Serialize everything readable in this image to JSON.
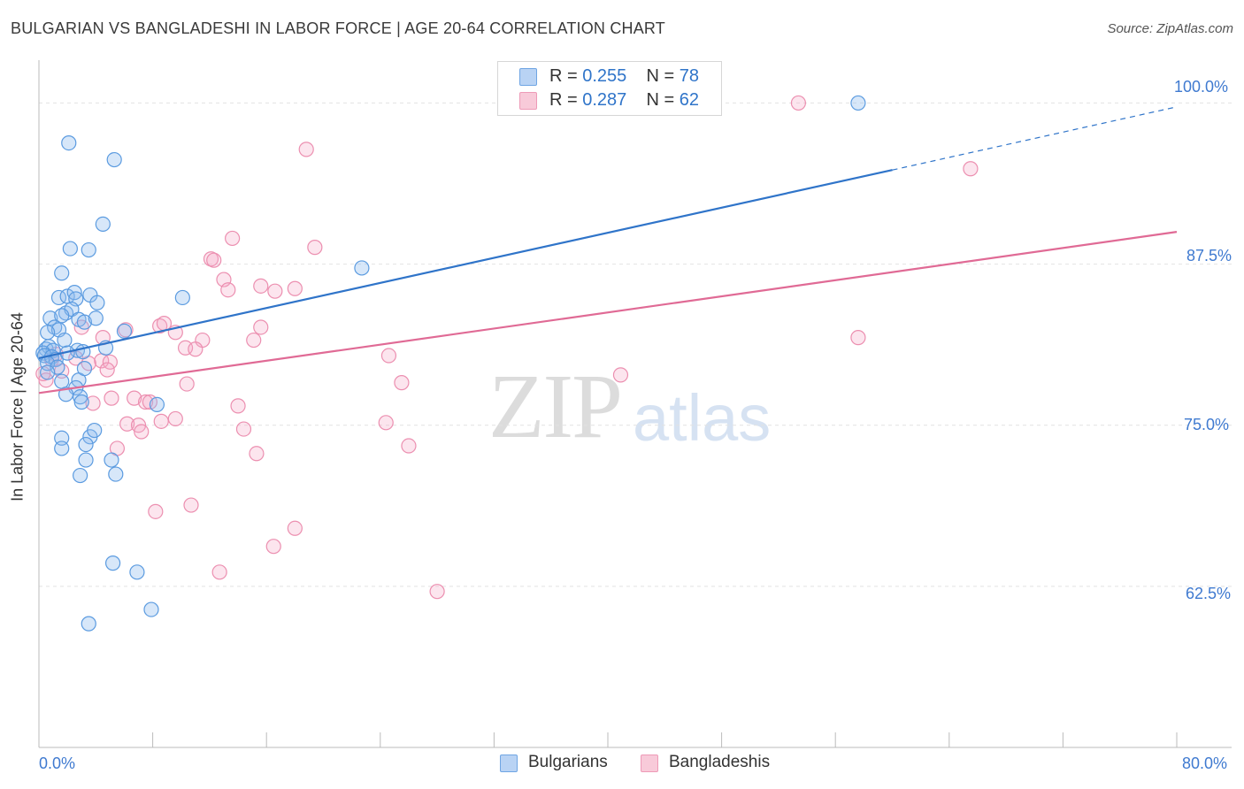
{
  "title": "BULGARIAN VS BANGLADESHI IN LABOR FORCE | AGE 20-64 CORRELATION CHART",
  "source": "Source: ZipAtlas.com",
  "watermark": {
    "zip": "ZIP",
    "atlas": "atlas"
  },
  "legend": {
    "bulgarians": {
      "r_label": "R = ",
      "r_value": "0.255",
      "n_label": "N = ",
      "n_value": "78"
    },
    "bangladeshis": {
      "r_label": "R = ",
      "r_value": "0.287",
      "n_label": "N = ",
      "n_value": "62"
    }
  },
  "bottom_legend": {
    "bulgarians": "Bulgarians",
    "bangladeshis": "Bangladeshis"
  },
  "colors": {
    "blue": "#5b9be0",
    "blue_line": "#2f74c9",
    "pink": "#ec8fb0",
    "pink_line": "#e06a95",
    "grid": "#e2e2e2"
  },
  "chart_data": {
    "type": "scatter",
    "title": "BULGARIAN VS BANGLADESHI IN LABOR FORCE | AGE 20-64 CORRELATION CHART",
    "xlabel": "",
    "ylabel": "In Labor Force | Age 20-64",
    "x_range": [
      0,
      80
    ],
    "y_range": [
      50,
      102.5
    ],
    "x_tick_labels": [
      "0.0%",
      "80.0%"
    ],
    "y_tick_labels": [
      "100.0%",
      "87.5%",
      "75.0%",
      "62.5%"
    ],
    "y_ticks": [
      100,
      87.5,
      75,
      62.5
    ],
    "grid": true,
    "legend_position": "top-center",
    "series": [
      {
        "name": "Bulgarians",
        "color": "#5b9be0",
        "trend": {
          "x": [
            0,
            60
          ],
          "y": [
            80.2,
            94.8
          ],
          "dashed_extension": {
            "x": [
              60,
              80
            ],
            "y": [
              94.8,
              99.7
            ]
          }
        },
        "points": [
          [
            2.1,
            96.9
          ],
          [
            5.3,
            95.6
          ],
          [
            4.5,
            90.6
          ],
          [
            57.6,
            100
          ],
          [
            22.7,
            87.2
          ],
          [
            2.2,
            88.7
          ],
          [
            3.5,
            88.6
          ],
          [
            1.6,
            86.8
          ],
          [
            3.6,
            85.1
          ],
          [
            1.4,
            84.9
          ],
          [
            2.0,
            85.0
          ],
          [
            2.5,
            85.3
          ],
          [
            2.6,
            84.8
          ],
          [
            4.1,
            84.5
          ],
          [
            10.1,
            84.9
          ],
          [
            1.9,
            83.7
          ],
          [
            2.3,
            84.0
          ],
          [
            0.8,
            83.3
          ],
          [
            1.6,
            83.5
          ],
          [
            2.8,
            83.2
          ],
          [
            1.1,
            82.6
          ],
          [
            1.4,
            82.4
          ],
          [
            0.6,
            82.2
          ],
          [
            3.2,
            83.0
          ],
          [
            4.0,
            83.3
          ],
          [
            6.0,
            82.3
          ],
          [
            1.8,
            81.6
          ],
          [
            0.5,
            80.9
          ],
          [
            0.7,
            81.1
          ],
          [
            1.0,
            80.8
          ],
          [
            0.3,
            80.6
          ],
          [
            0.4,
            80.4
          ],
          [
            0.9,
            80.3
          ],
          [
            1.2,
            80.1
          ],
          [
            2.7,
            80.8
          ],
          [
            4.7,
            81.0
          ],
          [
            3.1,
            80.7
          ],
          [
            0.6,
            79.8
          ],
          [
            1.3,
            79.5
          ],
          [
            1.6,
            78.4
          ],
          [
            2.8,
            78.5
          ],
          [
            2.6,
            77.9
          ],
          [
            1.9,
            77.4
          ],
          [
            2.9,
            77.2
          ],
          [
            8.3,
            76.6
          ],
          [
            3.0,
            76.8
          ],
          [
            1.6,
            74.0
          ],
          [
            3.6,
            74.1
          ],
          [
            3.9,
            74.6
          ],
          [
            1.6,
            73.2
          ],
          [
            3.3,
            73.5
          ],
          [
            3.3,
            72.3
          ],
          [
            5.1,
            72.3
          ],
          [
            2.9,
            71.1
          ],
          [
            5.4,
            71.2
          ],
          [
            5.2,
            64.3
          ],
          [
            6.9,
            63.6
          ],
          [
            7.9,
            60.7
          ],
          [
            3.5,
            59.6
          ],
          [
            0.6,
            79.1
          ],
          [
            2.0,
            80.6
          ],
          [
            3.2,
            79.4
          ]
        ]
      },
      {
        "name": "Bangladeshis",
        "color": "#ec8fb0",
        "trend": {
          "x": [
            0,
            80
          ],
          "y": [
            77.5,
            90.0
          ]
        },
        "points": [
          [
            53.4,
            100
          ],
          [
            18.8,
            96.4
          ],
          [
            65.5,
            94.9
          ],
          [
            13.6,
            89.5
          ],
          [
            19.4,
            88.8
          ],
          [
            12.1,
            87.9
          ],
          [
            12.3,
            87.8
          ],
          [
            13.0,
            86.3
          ],
          [
            15.6,
            85.8
          ],
          [
            16.6,
            85.4
          ],
          [
            18.0,
            85.6
          ],
          [
            13.3,
            85.5
          ],
          [
            8.5,
            82.7
          ],
          [
            8.8,
            82.9
          ],
          [
            15.6,
            82.6
          ],
          [
            9.6,
            82.2
          ],
          [
            6.1,
            82.4
          ],
          [
            3.0,
            82.6
          ],
          [
            4.5,
            81.8
          ],
          [
            15.1,
            81.6
          ],
          [
            11.5,
            81.6
          ],
          [
            10.3,
            81.0
          ],
          [
            11.0,
            80.9
          ],
          [
            57.6,
            81.8
          ],
          [
            0.9,
            80.1
          ],
          [
            2.6,
            80.2
          ],
          [
            4.4,
            80.0
          ],
          [
            5.0,
            79.9
          ],
          [
            3.5,
            79.8
          ],
          [
            24.6,
            80.4
          ],
          [
            4.8,
            79.3
          ],
          [
            40.9,
            78.9
          ],
          [
            25.5,
            78.3
          ],
          [
            10.4,
            78.2
          ],
          [
            0.5,
            78.5
          ],
          [
            1.6,
            79.2
          ],
          [
            5.1,
            77.1
          ],
          [
            6.7,
            77.1
          ],
          [
            7.5,
            76.8
          ],
          [
            3.8,
            76.7
          ],
          [
            7.8,
            76.8
          ],
          [
            14.0,
            76.5
          ],
          [
            9.6,
            75.5
          ],
          [
            6.2,
            75.1
          ],
          [
            7.0,
            75.0
          ],
          [
            8.6,
            75.3
          ],
          [
            7.2,
            74.5
          ],
          [
            14.4,
            74.7
          ],
          [
            24.4,
            75.2
          ],
          [
            26.0,
            73.4
          ],
          [
            5.5,
            73.2
          ],
          [
            15.3,
            72.8
          ],
          [
            10.7,
            68.8
          ],
          [
            8.2,
            68.3
          ],
          [
            18.0,
            67.0
          ],
          [
            16.5,
            65.6
          ],
          [
            12.7,
            63.6
          ],
          [
            28.0,
            62.1
          ],
          [
            0.3,
            79.0
          ],
          [
            1.2,
            80.5
          ]
        ]
      }
    ]
  }
}
